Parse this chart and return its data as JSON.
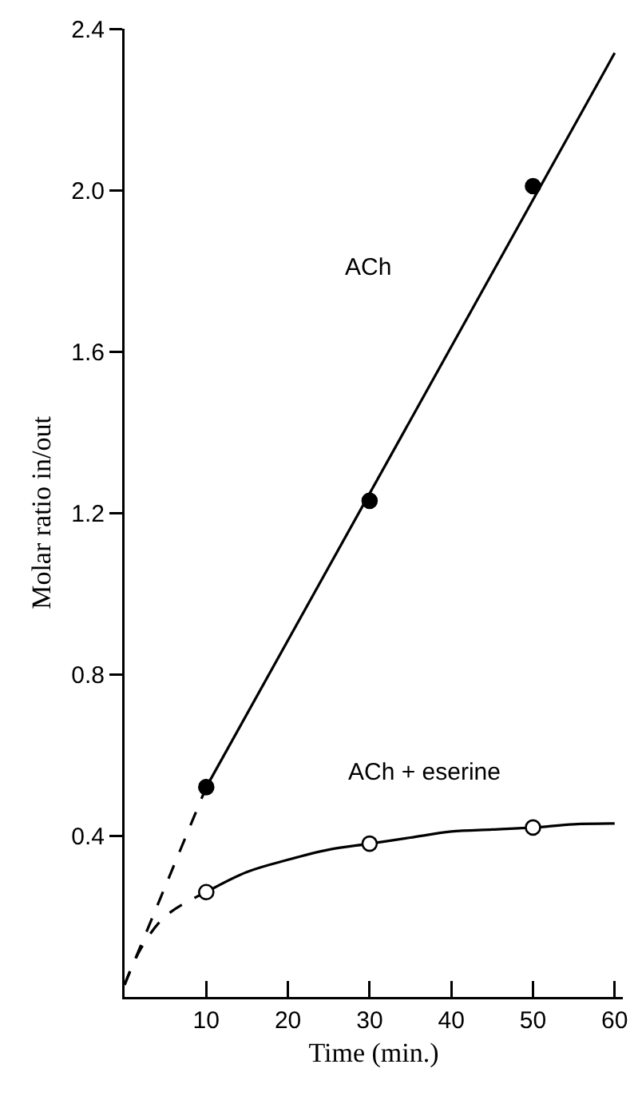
{
  "chart_data": {
    "type": "line",
    "xlabel": "Time (min.)",
    "ylabel": "Molar ratio in/out",
    "xlim": [
      0,
      61
    ],
    "xticks": [
      10,
      20,
      30,
      40,
      50,
      60
    ],
    "ylim": [
      0,
      2.4
    ],
    "yticks": [
      0.4,
      0.8,
      1.2,
      1.6,
      {
        "value": 2,
        "label": "2.0"
      },
      2.4
    ],
    "grid": false,
    "series": [
      {
        "type": "scatter",
        "marker": "circle",
        "color": "#000000",
        "x": [
          10,
          30,
          50
        ],
        "values": [
          0.52,
          1.23,
          2.01
        ]
      },
      {
        "line_style": "solid",
        "color": "#000000",
        "x": [
          10,
          60
        ],
        "values": [
          0.52,
          2.34
        ]
      },
      {
        "line_style": "dashed",
        "color": "#000000",
        "x": [
          0,
          10
        ],
        "values": [
          0.03,
          0.52
        ]
      },
      {
        "type": "scatter",
        "marker": "circle",
        "color": "#ffffff",
        "x": [
          10,
          30,
          50
        ],
        "values": [
          0.26,
          0.38,
          0.42
        ]
      },
      {
        "line_style": "solid",
        "color": "#000000",
        "x": [
          10,
          15,
          20,
          25,
          30,
          35,
          40,
          45,
          50,
          55,
          60
        ],
        "values": [
          0.26,
          0.31,
          0.34,
          0.365,
          0.38,
          0.395,
          0.41,
          0.415,
          0.42,
          0.428,
          0.43
        ]
      },
      {
        "line_style": "dashed",
        "color": "#000000",
        "x": [
          0,
          2,
          5,
          10
        ],
        "values": [
          0.03,
          0.12,
          0.2,
          0.26
        ]
      }
    ],
    "annotations": [
      "ACh",
      "ACh + eserine"
    ]
  }
}
